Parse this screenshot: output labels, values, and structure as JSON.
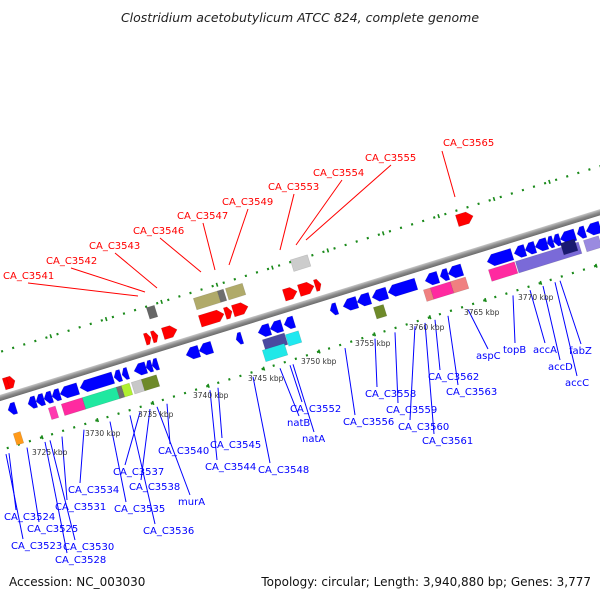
{
  "title": "Clostridium acetobutylicum ATCC 824, complete genome",
  "footer": {
    "accession": "Accession: NC_003030",
    "topology": "Topology: circular; Length: 3,940,880 bp; Genes: 3,777"
  },
  "colors": {
    "forward_label": "#ff0000",
    "reverse_label": "#0000ff",
    "ruler": "#1a8a1a",
    "backbone": "#8c8c8c"
  },
  "forward_labels": [
    "CA_C3541",
    "CA_C3542",
    "CA_C3543",
    "CA_C3546",
    "CA_C3547",
    "CA_C3549",
    "CA_C3553",
    "CA_C3554",
    "CA_C3555",
    "CA_C3565"
  ],
  "reverse_labels": [
    "CA_C3523",
    "CA_C3524",
    "CA_C3525",
    "CA_C3528",
    "CA_C3530",
    "CA_C3531",
    "CA_C3534",
    "CA_C3535",
    "CA_C3536",
    "CA_C3537",
    "CA_C3538",
    "murA",
    "CA_C3540",
    "CA_C3544",
    "CA_C3545",
    "CA_C3548",
    "CA_C3552",
    "natB",
    "natA",
    "CA_C3556",
    "CA_C3558",
    "CA_C3559",
    "CA_C3560",
    "CA_C3561",
    "CA_C3562",
    "CA_C3563",
    "aspC",
    "topB",
    "accA",
    "accD",
    "fabZ",
    "accC"
  ],
  "scale_labels": [
    "3725 kbp",
    "3730 kbp",
    "3735 kbp",
    "3740 kbp",
    "3745 kbp",
    "3750 kbp",
    "3755 kbp",
    "3760 kbp",
    "3765 kbp",
    "3770 kbp"
  ]
}
